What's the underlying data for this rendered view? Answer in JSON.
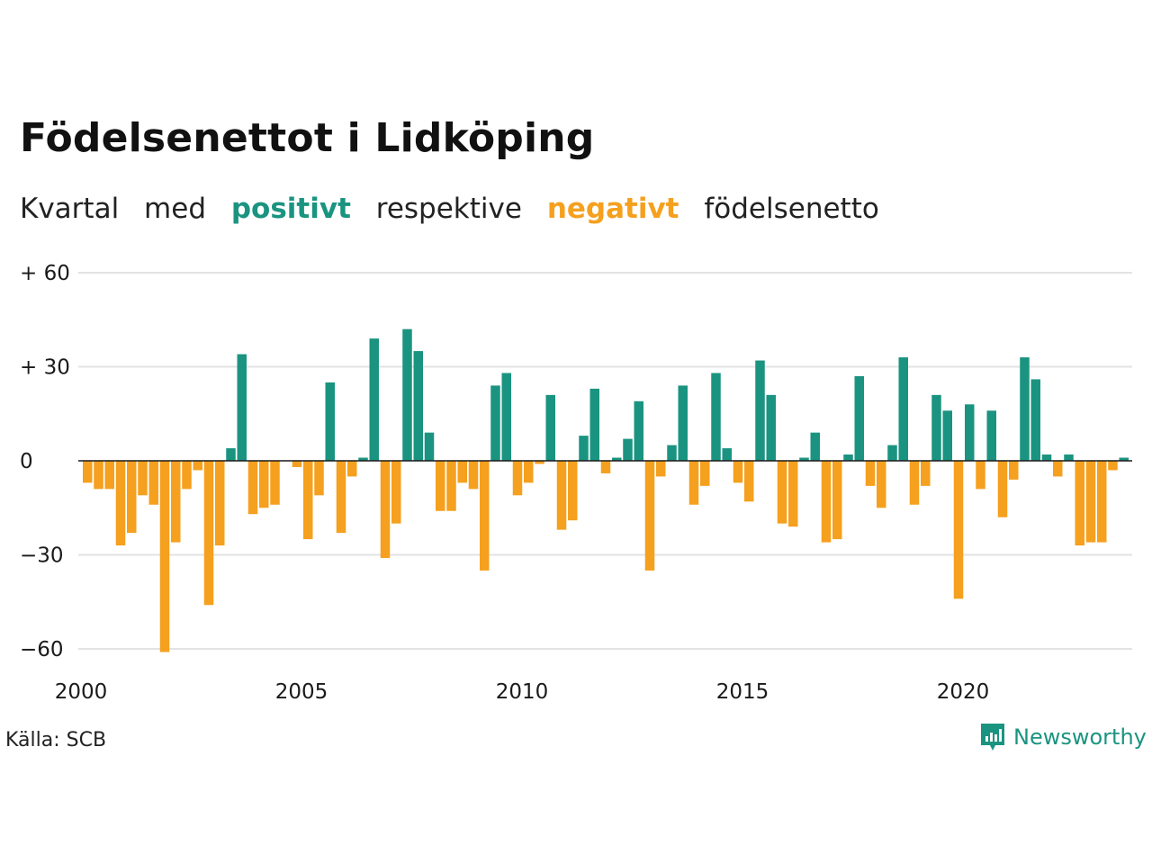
{
  "title": "Födelsenettot i Lidköping",
  "subtitle": {
    "part1": "Kvartal",
    "part2": "med",
    "positive": "positivt",
    "part3": "respektive",
    "negative": "negativt",
    "part4": "födelsenetto"
  },
  "source": "Källa: SCB",
  "brand": {
    "name": "Newsworthy",
    "icon": "newsworthy-logo-icon"
  },
  "colors": {
    "positive": "#1a9480",
    "negative": "#f5a01e",
    "grid": "#e3e3e3",
    "axis": "#1a1a1a"
  },
  "chart_data": {
    "type": "bar",
    "x_start": "2000 Q1",
    "x_ticks": [
      "2000",
      "2005",
      "2010",
      "2015",
      "2020"
    ],
    "y_ticks": [
      "+ 60",
      "+ 30",
      "0",
      "−30",
      "−60"
    ],
    "y_tick_values": [
      60,
      30,
      0,
      -30,
      -60
    ],
    "ylim": [
      -62,
      62
    ],
    "grid": true,
    "values": [
      -7,
      -9,
      -9,
      -27,
      -23,
      -11,
      -14,
      -61,
      -26,
      -9,
      -3,
      -46,
      -27,
      4,
      34,
      -17,
      -15,
      -14,
      0,
      -2,
      -25,
      -11,
      25,
      -23,
      -5,
      1,
      39,
      -31,
      -20,
      42,
      35,
      9,
      -16,
      -16,
      -7,
      -9,
      -35,
      24,
      28,
      -11,
      -7,
      -1,
      21,
      -22,
      -19,
      8,
      23,
      -4,
      1,
      7,
      19,
      -35,
      -5,
      5,
      24,
      -14,
      -8,
      28,
      4,
      -7,
      -13,
      32,
      21,
      -20,
      -21,
      1,
      9,
      -26,
      -25,
      2,
      27,
      -8,
      -15,
      5,
      33,
      -14,
      -8,
      21,
      16,
      -44,
      18,
      -9,
      16,
      -18,
      -6,
      33,
      26,
      2,
      -5,
      2,
      -27,
      -26,
      -26,
      -3,
      1
    ]
  }
}
